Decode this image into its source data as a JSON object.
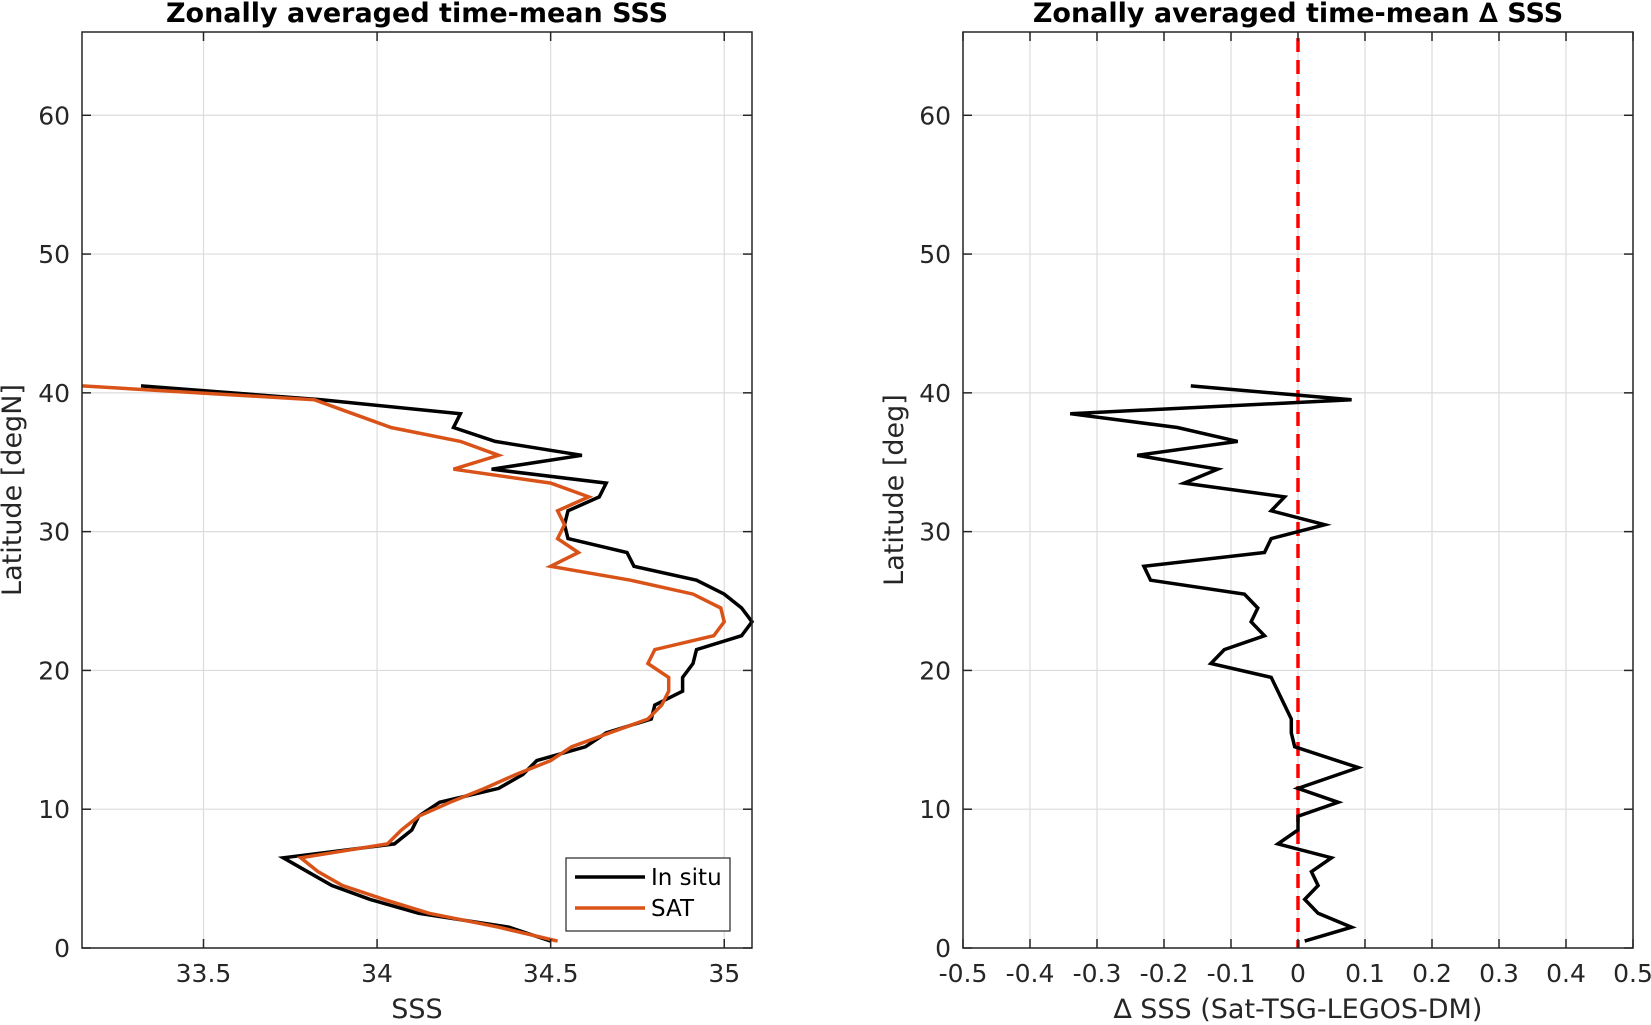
{
  "chart_data": [
    {
      "type": "line",
      "title": "Zonally averaged time-mean SSS",
      "xlabel": "SSS",
      "ylabel": "Latitude [degN]",
      "xlim": [
        33.15,
        35.08
      ],
      "ylim": [
        0,
        66
      ],
      "xticks": [
        33.5,
        34,
        34.5,
        35
      ],
      "xtick_labels": [
        "33.5",
        "34",
        "34.5",
        "35"
      ],
      "yticks": [
        0,
        10,
        20,
        30,
        40,
        50,
        60
      ],
      "ytick_labels": [
        "0",
        "10",
        "20",
        "30",
        "40",
        "50",
        "60"
      ],
      "grid": true,
      "legend": {
        "position": "bottom-right",
        "entries": [
          "In situ",
          "SAT"
        ]
      },
      "series": [
        {
          "name": "In situ",
          "color": "#000000",
          "points": [
            [
              34.5,
              0.5
            ],
            [
              34.38,
              1.5
            ],
            [
              34.12,
              2.5
            ],
            [
              33.98,
              3.5
            ],
            [
              33.87,
              4.5
            ],
            [
              33.8,
              5.5
            ],
            [
              33.73,
              6.5
            ],
            [
              34.05,
              7.5
            ],
            [
              34.1,
              8.5
            ],
            [
              34.12,
              9.5
            ],
            [
              34.18,
              10.5
            ],
            [
              34.35,
              11.5
            ],
            [
              34.42,
              12.5
            ],
            [
              34.46,
              13.5
            ],
            [
              34.6,
              14.5
            ],
            [
              34.66,
              15.5
            ],
            [
              34.79,
              16.5
            ],
            [
              34.8,
              17.5
            ],
            [
              34.88,
              18.5
            ],
            [
              34.88,
              19.5
            ],
            [
              34.91,
              20.5
            ],
            [
              34.92,
              21.5
            ],
            [
              35.05,
              22.5
            ],
            [
              35.08,
              23.5
            ],
            [
              35.05,
              24.5
            ],
            [
              35.0,
              25.5
            ],
            [
              34.92,
              26.5
            ],
            [
              34.74,
              27.5
            ],
            [
              34.72,
              28.5
            ],
            [
              34.55,
              29.5
            ],
            [
              34.54,
              30.5
            ],
            [
              34.55,
              31.5
            ],
            [
              34.64,
              32.5
            ],
            [
              34.66,
              33.5
            ],
            [
              34.33,
              34.5
            ],
            [
              34.59,
              35.5
            ],
            [
              34.34,
              36.5
            ],
            [
              34.22,
              37.5
            ],
            [
              34.24,
              38.5
            ],
            [
              33.84,
              39.5
            ],
            [
              33.32,
              40.5
            ]
          ]
        },
        {
          "name": "SAT",
          "color": "#d95319",
          "points": [
            [
              34.52,
              0.5
            ],
            [
              34.35,
              1.5
            ],
            [
              34.15,
              2.5
            ],
            [
              34.02,
              3.5
            ],
            [
              33.9,
              4.5
            ],
            [
              33.83,
              5.5
            ],
            [
              33.78,
              6.5
            ],
            [
              34.03,
              7.5
            ],
            [
              34.07,
              8.5
            ],
            [
              34.12,
              9.5
            ],
            [
              34.21,
              10.5
            ],
            [
              34.31,
              11.5
            ],
            [
              34.4,
              12.5
            ],
            [
              34.5,
              13.5
            ],
            [
              34.56,
              14.5
            ],
            [
              34.67,
              15.5
            ],
            [
              34.78,
              16.5
            ],
            [
              34.82,
              17.5
            ],
            [
              34.84,
              18.5
            ],
            [
              34.84,
              19.5
            ],
            [
              34.78,
              20.5
            ],
            [
              34.8,
              21.5
            ],
            [
              34.97,
              22.5
            ],
            [
              35.0,
              23.5
            ],
            [
              34.99,
              24.5
            ],
            [
              34.91,
              25.5
            ],
            [
              34.73,
              26.5
            ],
            [
              34.5,
              27.5
            ],
            [
              34.58,
              28.5
            ],
            [
              34.52,
              29.5
            ],
            [
              34.54,
              30.5
            ],
            [
              34.52,
              31.5
            ],
            [
              34.61,
              32.5
            ],
            [
              34.5,
              33.5
            ],
            [
              34.22,
              34.5
            ],
            [
              34.35,
              35.5
            ],
            [
              34.24,
              36.5
            ],
            [
              34.04,
              37.5
            ],
            [
              33.93,
              38.5
            ],
            [
              33.82,
              39.5
            ],
            [
              33.15,
              40.5
            ]
          ]
        }
      ]
    },
    {
      "type": "line",
      "title": "Zonally averaged time-mean ∆ SSS",
      "xlabel": "∆ SSS (Sat-TSG-LEGOS-DM)",
      "ylabel": "Latitude [deg]",
      "xlim": [
        -0.5,
        0.5
      ],
      "ylim": [
        0,
        66
      ],
      "xticks": [
        -0.5,
        -0.4,
        -0.3,
        -0.2,
        -0.1,
        0,
        0.1,
        0.2,
        0.3,
        0.4,
        0.5
      ],
      "xtick_labels": [
        "-0.5",
        "-0.4",
        "-0.3",
        "-0.2",
        "-0.1",
        "0",
        "0.1",
        "0.2",
        "0.3",
        "0.4",
        "0.5"
      ],
      "yticks": [
        0,
        10,
        20,
        30,
        40,
        50,
        60
      ],
      "ytick_labels": [
        "0",
        "10",
        "20",
        "30",
        "40",
        "50",
        "60"
      ],
      "grid": true,
      "reference_line": {
        "x": 0,
        "color": "#ff0000",
        "style": "dashed"
      },
      "series": [
        {
          "color": "#000000",
          "points": [
            [
              0.01,
              0.5
            ],
            [
              0.08,
              1.5
            ],
            [
              0.03,
              2.5
            ],
            [
              0.01,
              3.5
            ],
            [
              0.03,
              4.5
            ],
            [
              0.02,
              5.5
            ],
            [
              0.05,
              6.5
            ],
            [
              -0.03,
              7.5
            ],
            [
              0.0,
              8.5
            ],
            [
              0.0,
              9.5
            ],
            [
              0.06,
              10.5
            ],
            [
              0.0,
              11.5
            ],
            [
              0.09,
              13.0
            ],
            [
              -0.005,
              14.5
            ],
            [
              -0.01,
              15.5
            ],
            [
              -0.01,
              16.5
            ],
            [
              -0.02,
              17.5
            ],
            [
              -0.03,
              18.5
            ],
            [
              -0.04,
              19.5
            ],
            [
              -0.13,
              20.5
            ],
            [
              -0.11,
              21.5
            ],
            [
              -0.05,
              22.5
            ],
            [
              -0.07,
              23.5
            ],
            [
              -0.06,
              24.5
            ],
            [
              -0.08,
              25.5
            ],
            [
              -0.22,
              26.5
            ],
            [
              -0.23,
              27.5
            ],
            [
              -0.05,
              28.5
            ],
            [
              -0.04,
              29.5
            ],
            [
              0.04,
              30.5
            ],
            [
              -0.04,
              31.5
            ],
            [
              -0.02,
              32.5
            ],
            [
              -0.17,
              33.5
            ],
            [
              -0.12,
              34.5
            ],
            [
              -0.24,
              35.5
            ],
            [
              -0.09,
              36.5
            ],
            [
              -0.18,
              37.5
            ],
            [
              -0.34,
              38.5
            ],
            [
              0.08,
              39.5
            ],
            [
              -0.16,
              40.5
            ]
          ]
        }
      ]
    }
  ]
}
